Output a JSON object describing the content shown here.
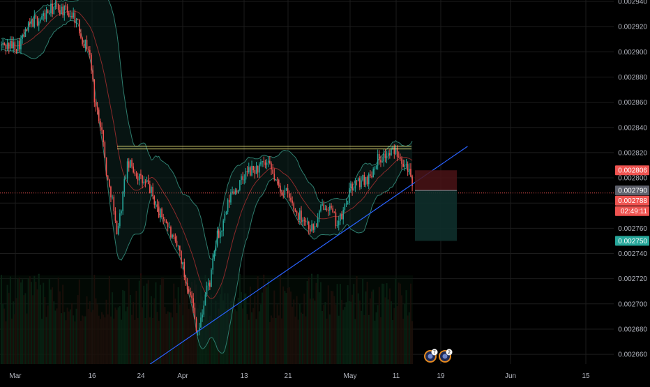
{
  "chart_data": {
    "type": "candlestick",
    "y_axis": {
      "ticks": [
        "0.002940",
        "0.002920",
        "0.002900",
        "0.002880",
        "0.002860",
        "0.002840",
        "0.002820",
        "0.002800",
        "0.002780",
        "0.002760",
        "0.002740",
        "0.002720",
        "0.002700",
        "0.002680",
        "0.002660"
      ],
      "range": [
        0.00265,
        0.002945
      ]
    },
    "x_axis": {
      "ticks": [
        "Mar",
        "16",
        "24",
        "Apr",
        "13",
        "21",
        "May",
        "11",
        "19",
        "Jun",
        "15"
      ]
    },
    "price_labels": {
      "upper_target": "0.002806",
      "current_price": "0.002790",
      "stop_level": "0.002788",
      "countdown": "02:49:11",
      "lower_target": "0.002750"
    },
    "levels": {
      "resistance": 0.002824,
      "current_line": 0.002788
    },
    "trendline": {
      "points": [
        {
          "date": "Mar 25",
          "price": 0.00265
        },
        {
          "date": "May 24",
          "price": 0.002825
        }
      ]
    },
    "position": {
      "entry": 0.00279,
      "stop": 0.002806,
      "target": 0.00275
    },
    "series_keypoints": [
      {
        "date": "Mar 1",
        "price": 0.002905
      },
      {
        "date": "Mar 5",
        "price": 0.002925
      },
      {
        "date": "Mar 9",
        "price": 0.002935
      },
      {
        "date": "Mar 12",
        "price": 0.00293
      },
      {
        "date": "Mar 15",
        "price": 0.002905
      },
      {
        "date": "Mar 17",
        "price": 0.00285
      },
      {
        "date": "Mar 19",
        "price": 0.00279
      },
      {
        "date": "Mar 20",
        "price": 0.00276
      },
      {
        "date": "Mar 22",
        "price": 0.00281
      },
      {
        "date": "Mar 25",
        "price": 0.002795
      },
      {
        "date": "Mar 28",
        "price": 0.00277
      },
      {
        "date": "Mar 31",
        "price": 0.002745
      },
      {
        "date": "Apr 2",
        "price": 0.002715
      },
      {
        "date": "Apr 4",
        "price": 0.00268
      },
      {
        "date": "Apr 6",
        "price": 0.002715
      },
      {
        "date": "Apr 8",
        "price": 0.002755
      },
      {
        "date": "Apr 11",
        "price": 0.00279
      },
      {
        "date": "Apr 14",
        "price": 0.002805
      },
      {
        "date": "Apr 17",
        "price": 0.00281
      },
      {
        "date": "Apr 20",
        "price": 0.00279
      },
      {
        "date": "Apr 23",
        "price": 0.00277
      },
      {
        "date": "Apr 25",
        "price": 0.00276
      },
      {
        "date": "Apr 27",
        "price": 0.00278
      },
      {
        "date": "Apr 29",
        "price": 0.002765
      },
      {
        "date": "May 2",
        "price": 0.002795
      },
      {
        "date": "May 5",
        "price": 0.0028
      },
      {
        "date": "May 7",
        "price": 0.002815
      },
      {
        "date": "May 9",
        "price": 0.002818
      },
      {
        "date": "May 11",
        "price": 0.002822
      },
      {
        "date": "May 13",
        "price": 0.00281
      },
      {
        "date": "May 14",
        "price": 0.00279
      }
    ],
    "event_badges": [
      "7",
      "2"
    ],
    "colors": {
      "background": "#000000",
      "grid": "#1c1c1c",
      "up": "#26a69a",
      "down": "#ef5350",
      "bands": "#2e7d6e",
      "ma": "#8b2a2a",
      "resistance": "#e6e27a",
      "trendline": "#2962ff",
      "current_line": "#ef5350",
      "label_red": "#ef5350",
      "label_gray": "#5d606b",
      "label_green": "#26a69a",
      "axis_text": "#b2b5be",
      "badge_ring": "#e58a1f"
    }
  }
}
